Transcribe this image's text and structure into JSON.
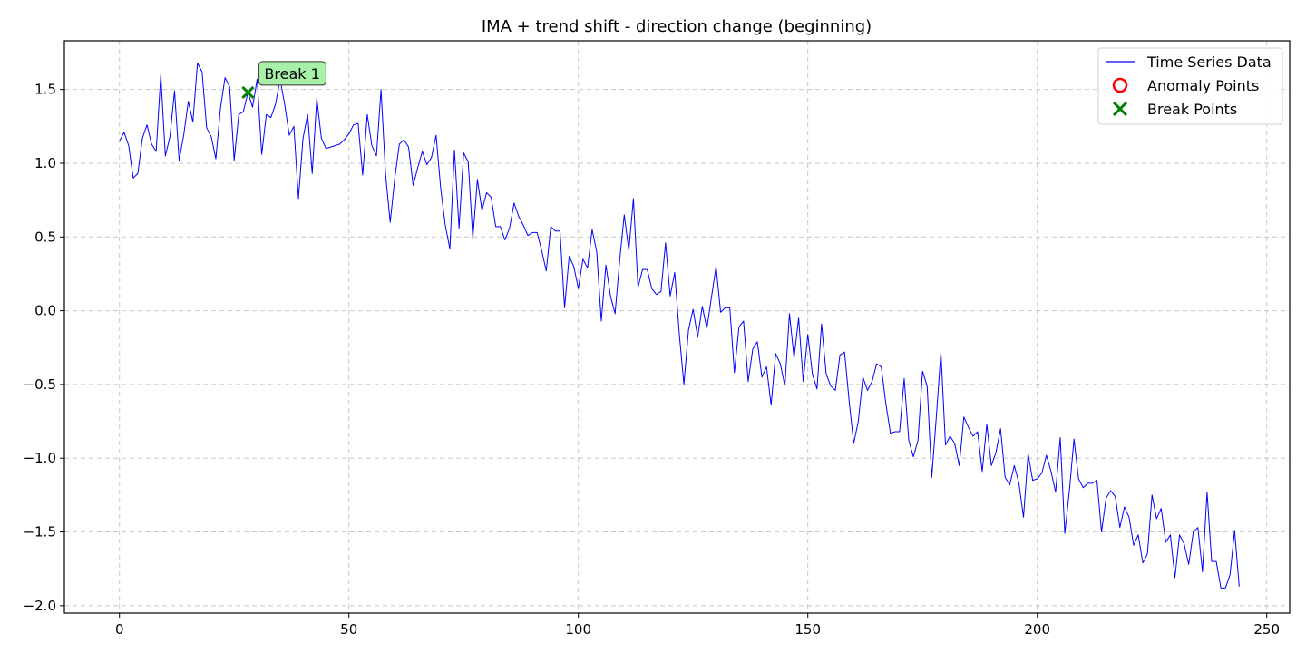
{
  "chart_data": {
    "type": "line",
    "title": "IMA + trend shift - direction change (beginning)",
    "xlabel": "",
    "ylabel": "",
    "xlim": [
      -12,
      255
    ],
    "ylim": [
      -2.05,
      1.83
    ],
    "xticks": [
      0,
      50,
      100,
      150,
      200,
      250
    ],
    "yticks": [
      -2.0,
      -1.5,
      -1.0,
      -0.5,
      0.0,
      0.5,
      1.0,
      1.5
    ],
    "xtick_labels": [
      "0",
      "50",
      "100",
      "150",
      "200",
      "250"
    ],
    "ytick_labels": [
      "−2.0",
      "−1.5",
      "−1.0",
      "−0.5",
      "0.0",
      "0.5",
      "1.0",
      "1.5"
    ],
    "grid": true,
    "legend_position": "top-right",
    "series": [
      {
        "name": "Time Series Data",
        "color": "#0000ff",
        "values": [
          1.15,
          1.21,
          1.12,
          0.9,
          0.93,
          1.17,
          1.26,
          1.13,
          1.08,
          1.6,
          1.05,
          1.18,
          1.49,
          1.02,
          1.19,
          1.42,
          1.28,
          1.68,
          1.62,
          1.24,
          1.18,
          1.03,
          1.37,
          1.58,
          1.52,
          1.02,
          1.33,
          1.35,
          1.48,
          1.38,
          1.57,
          1.06,
          1.33,
          1.31,
          1.4,
          1.57,
          1.4,
          1.19,
          1.25,
          0.76,
          1.17,
          1.33,
          0.93,
          1.44,
          1.17,
          1.1,
          1.11,
          1.12,
          1.13,
          1.16,
          1.2,
          1.26,
          1.27,
          0.92,
          1.33,
          1.12,
          1.05,
          1.5,
          0.92,
          0.6,
          0.9,
          1.13,
          1.16,
          1.11,
          0.85,
          0.97,
          1.08,
          0.99,
          1.04,
          1.19,
          0.83,
          0.58,
          0.42,
          1.09,
          0.56,
          1.07,
          1.01,
          0.49,
          0.89,
          0.68,
          0.8,
          0.77,
          0.57,
          0.57,
          0.48,
          0.56,
          0.73,
          0.64,
          0.58,
          0.51,
          0.53,
          0.53,
          0.41,
          0.27,
          0.57,
          0.54,
          0.54,
          0.02,
          0.37,
          0.3,
          0.15,
          0.35,
          0.29,
          0.55,
          0.4,
          -0.07,
          0.31,
          0.1,
          -0.02,
          0.34,
          0.65,
          0.41,
          0.76,
          0.16,
          0.28,
          0.28,
          0.15,
          0.11,
          0.13,
          0.46,
          0.1,
          0.26,
          -0.16,
          -0.5,
          -0.13,
          0.01,
          -0.18,
          0.03,
          -0.12,
          0.09,
          0.3,
          -0.01,
          0.02,
          0.02,
          -0.42,
          -0.11,
          -0.07,
          -0.48,
          -0.26,
          -0.21,
          -0.45,
          -0.38,
          -0.64,
          -0.29,
          -0.36,
          -0.51,
          -0.02,
          -0.32,
          -0.05,
          -0.48,
          -0.16,
          -0.43,
          -0.53,
          -0.09,
          -0.43,
          -0.51,
          -0.54,
          -0.3,
          -0.28,
          -0.61,
          -0.9,
          -0.75,
          -0.45,
          -0.54,
          -0.48,
          -0.36,
          -0.38,
          -0.63,
          -0.83,
          -0.82,
          -0.82,
          -0.46,
          -0.88,
          -0.99,
          -0.88,
          -0.41,
          -0.51,
          -1.13,
          -0.72,
          -0.28,
          -0.91,
          -0.85,
          -0.9,
          -1.05,
          -0.72,
          -0.79,
          -0.85,
          -0.82,
          -1.09,
          -0.77,
          -1.05,
          -0.96,
          -0.8,
          -1.13,
          -1.18,
          -1.05,
          -1.17,
          -1.4,
          -0.97,
          -1.15,
          -1.14,
          -1.1,
          -0.98,
          -1.09,
          -1.23,
          -0.86,
          -1.51,
          -1.22,
          -0.87,
          -1.14,
          -1.2,
          -1.17,
          -1.17,
          -1.15,
          -1.5,
          -1.27,
          -1.22,
          -1.26,
          -1.47,
          -1.33,
          -1.4,
          -1.59,
          -1.52,
          -1.71,
          -1.65,
          -1.25,
          -1.41,
          -1.34,
          -1.57,
          -1.52,
          -1.81,
          -1.52,
          -1.58,
          -1.72,
          -1.5,
          -1.47,
          -1.77,
          -1.23,
          -1.7,
          -1.7,
          -1.88,
          -1.88,
          -1.79,
          -1.49,
          -1.87
        ]
      }
    ],
    "anomaly_points": [],
    "break_points": [
      {
        "x": 28,
        "y": 1.48,
        "label": "Break 1"
      }
    ],
    "legend": [
      {
        "label": "Time Series Data",
        "marker": "line",
        "color": "#0000ff"
      },
      {
        "label": "Anomaly Points",
        "marker": "circle",
        "color": "#ff0000"
      },
      {
        "label": "Break Points",
        "marker": "x",
        "color": "#008000"
      }
    ],
    "annotation_style": {
      "fill": "#a8f0a8",
      "stroke": "#333333"
    }
  }
}
